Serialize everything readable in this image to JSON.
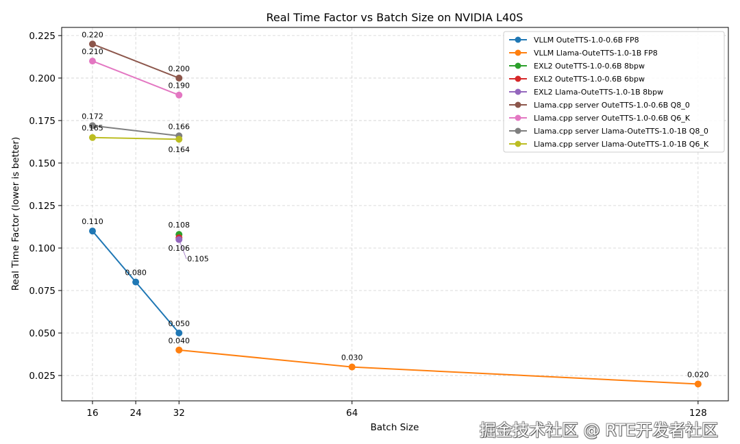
{
  "chart_data": {
    "type": "line",
    "title": "Real Time Factor vs Batch Size on NVIDIA L40S",
    "xlabel": "Batch Size",
    "ylabel": "Real Time Factor (lower is better)",
    "xlim": [
      10.3,
      133.6
    ],
    "ylim": [
      0.0101,
      0.2298
    ],
    "xticks": [
      16,
      24,
      32,
      64,
      128
    ],
    "xtick_labels": [
      "16",
      "24",
      "32",
      "64",
      "128"
    ],
    "yticks": [
      0.025,
      0.05,
      0.075,
      0.1,
      0.125,
      0.15,
      0.175,
      0.2,
      0.225
    ],
    "ytick_labels": [
      "0.025",
      "0.050",
      "0.075",
      "0.100",
      "0.125",
      "0.150",
      "0.175",
      "0.200",
      "0.225"
    ],
    "grid": true,
    "legend_position": "top-right",
    "series": [
      {
        "name": "VLLM OuteTTS-1.0-0.6B FP8",
        "color": "#1f77b4",
        "x": [
          16,
          24,
          32
        ],
        "y": [
          0.11,
          0.08,
          0.05
        ],
        "labels": [
          "0.110",
          "0.080",
          "0.050"
        ]
      },
      {
        "name": "VLLM Llama-OuteTTS-1.0-1B FP8",
        "color": "#ff7f0e",
        "x": [
          32,
          64,
          128
        ],
        "y": [
          0.04,
          0.03,
          0.02
        ],
        "labels": [
          "0.040",
          "0.030",
          "0.020"
        ]
      },
      {
        "name": "EXL2 OuteTTS-1.0-0.6B 8bpw",
        "color": "#2ca02c",
        "x": [
          32
        ],
        "y": [
          0.108
        ],
        "labels": [
          "0.108"
        ]
      },
      {
        "name": "EXL2 OuteTTS-1.0-0.6B 6bpw",
        "color": "#d62728",
        "x": [
          32
        ],
        "y": [
          0.106
        ],
        "labels": [
          "0.106"
        ]
      },
      {
        "name": "EXL2 Llama-OuteTTS-1.0-1B 8bpw",
        "color": "#9467bd",
        "x": [
          32
        ],
        "y": [
          0.105
        ],
        "labels": [
          "0.105"
        ]
      },
      {
        "name": "Llama.cpp server OuteTTS-1.0-0.6B Q8_0",
        "color": "#8c564b",
        "x": [
          16,
          32
        ],
        "y": [
          0.22,
          0.2
        ],
        "labels": [
          "0.220",
          "0.200"
        ]
      },
      {
        "name": "Llama.cpp server OuteTTS-1.0-0.6B Q6_K",
        "color": "#e377c2",
        "x": [
          16,
          32
        ],
        "y": [
          0.21,
          0.19
        ],
        "labels": [
          "0.210",
          "0.190"
        ]
      },
      {
        "name": "Llama.cpp server Llama-OuteTTS-1.0-1B Q8_0",
        "color": "#7f7f7f",
        "x": [
          16,
          32
        ],
        "y": [
          0.172,
          0.166
        ],
        "labels": [
          "0.172",
          "0.166"
        ]
      },
      {
        "name": "Llama.cpp server Llama-OuteTTS-1.0-1B Q6_K",
        "color": "#bcbd22",
        "x": [
          16,
          32
        ],
        "y": [
          0.165,
          0.164
        ],
        "labels": [
          "0.165",
          "0.164"
        ]
      }
    ]
  },
  "watermark": "掘金技术社区 @ RTE开发者社区"
}
